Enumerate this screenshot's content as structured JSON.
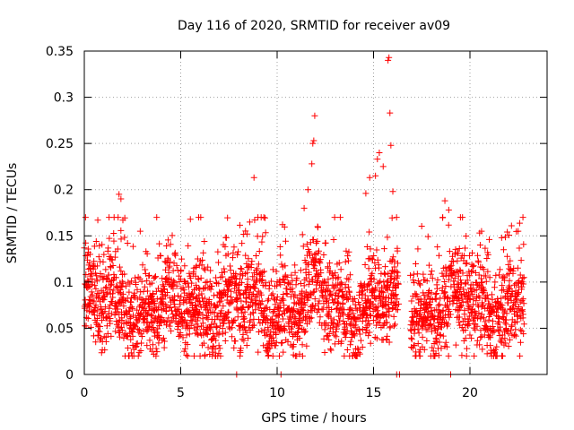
{
  "chart_data": {
    "type": "scatter",
    "title": "Day 116 of 2020, SRMTID for receiver av09",
    "xlabel": "GPS time / hours",
    "ylabel": "SRMTID / TECUs",
    "xlim": [
      0,
      24
    ],
    "ylim": [
      0,
      0.35
    ],
    "xticks": [
      0,
      5,
      10,
      15,
      20
    ],
    "xtick_labels": [
      "0",
      "5",
      "10",
      "15",
      "20"
    ],
    "yticks": [
      0,
      0.05,
      0.1,
      0.15,
      0.2,
      0.25,
      0.3,
      0.35
    ],
    "ytick_labels": [
      "0",
      "0.05",
      "0.1",
      "0.15",
      "0.2",
      "0.25",
      "0.3",
      "0.35"
    ],
    "grid": true,
    "marker": "+",
    "color": "#ff0000",
    "time_range_hours": [
      0,
      22.8
    ],
    "baseline_mean": 0.075,
    "notable_points": [
      {
        "x": 0.0,
        "y": 0.137
      },
      {
        "x": 0.3,
        "y": 0.13
      },
      {
        "x": 0.7,
        "y": 0.167
      },
      {
        "x": 1.8,
        "y": 0.195
      },
      {
        "x": 1.9,
        "y": 0.19
      },
      {
        "x": 2.0,
        "y": 0.167
      },
      {
        "x": 2.8,
        "y": 0.02
      },
      {
        "x": 2.9,
        "y": 0.155
      },
      {
        "x": 5.5,
        "y": 0.168
      },
      {
        "x": 8.8,
        "y": 0.213
      },
      {
        "x": 11.4,
        "y": 0.18
      },
      {
        "x": 11.6,
        "y": 0.2
      },
      {
        "x": 11.8,
        "y": 0.228
      },
      {
        "x": 11.85,
        "y": 0.25
      },
      {
        "x": 11.9,
        "y": 0.253
      },
      {
        "x": 11.95,
        "y": 0.28
      },
      {
        "x": 12.1,
        "y": 0.16
      },
      {
        "x": 14.6,
        "y": 0.196
      },
      {
        "x": 14.8,
        "y": 0.213
      },
      {
        "x": 15.1,
        "y": 0.215
      },
      {
        "x": 15.2,
        "y": 0.233
      },
      {
        "x": 15.3,
        "y": 0.24
      },
      {
        "x": 15.5,
        "y": 0.225
      },
      {
        "x": 15.75,
        "y": 0.34
      },
      {
        "x": 15.8,
        "y": 0.343
      },
      {
        "x": 15.85,
        "y": 0.283
      },
      {
        "x": 15.9,
        "y": 0.248
      },
      {
        "x": 16.0,
        "y": 0.198
      },
      {
        "x": 18.7,
        "y": 0.188
      },
      {
        "x": 18.9,
        "y": 0.178
      },
      {
        "x": 20.6,
        "y": 0.155
      },
      {
        "x": 22.5,
        "y": 0.155
      }
    ],
    "quiet_gaps_hours": [
      [
        16.3,
        16.9
      ]
    ],
    "zero_points": [
      {
        "x": 7.9,
        "y": 0
      },
      {
        "x": 10.2,
        "y": 0
      },
      {
        "x": 16.2,
        "y": 0
      },
      {
        "x": 16.35,
        "y": 0
      },
      {
        "x": 19.0,
        "y": 0
      }
    ]
  }
}
